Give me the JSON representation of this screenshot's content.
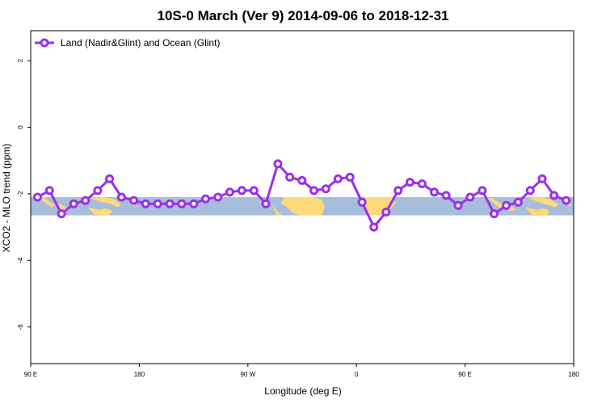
{
  "chart_data": {
    "type": "line",
    "title": "10S-0 March (Ver 9)   2014-09-06 to 2018-12-31",
    "xlabel": "Longitude (deg E)",
    "ylabel": "XCO2 - MLO trend (ppm)",
    "xlim": [
      90,
      450
    ],
    "ylim": [
      -7.1,
      2.9
    ],
    "x_ticks": [
      {
        "value": 90,
        "label": "90 E"
      },
      {
        "value": 162,
        "label": "180"
      },
      {
        "value": 234,
        "label": "90 W"
      },
      {
        "value": 306,
        "label": "0"
      },
      {
        "value": 378,
        "label": "90 E"
      },
      {
        "value": 450,
        "label": "180"
      }
    ],
    "y_ticks": [
      {
        "value": 2,
        "label": "2"
      },
      {
        "value": 0,
        "label": "0"
      },
      {
        "value": -2,
        "label": "-2"
      },
      {
        "value": -4,
        "label": "-4"
      },
      {
        "value": -6,
        "label": "-6"
      }
    ],
    "grid": false,
    "legend_position": "top-left",
    "map_band": {
      "y_range": [
        -2.65,
        -2.1
      ],
      "ocean_color": "#a6bddb",
      "land_color": "#fdd97a"
    },
    "series": [
      {
        "name": "Land (Nadir&Glint) and Ocean (Glint)",
        "color": "#9b30e8",
        "x": [
          94.5,
          102.5,
          110.4,
          118.5,
          126.3,
          134.4,
          142.3,
          150.2,
          158.3,
          166.2,
          174.2,
          182.2,
          190.1,
          198.1,
          206.0,
          214.1,
          222.0,
          230.0,
          238.0,
          245.9,
          253.9,
          261.8,
          269.9,
          277.8,
          285.7,
          293.8,
          301.7,
          309.7,
          317.5,
          325.6,
          333.6,
          341.5,
          349.5,
          357.6,
          365.4,
          373.4,
          381.3,
          389.4,
          397.3,
          405.3,
          413.2,
          421.2,
          429.1,
          437.0,
          445.0
        ],
        "y": [
          -2.1,
          -1.9,
          -2.6,
          -2.3,
          -2.2,
          -1.9,
          -1.55,
          -2.1,
          -2.2,
          -2.3,
          -2.3,
          -2.3,
          -2.3,
          -2.3,
          -2.15,
          -2.1,
          -1.95,
          -1.9,
          -1.9,
          -2.3,
          -1.1,
          -1.5,
          -1.6,
          -1.9,
          -1.85,
          -1.55,
          -1.5,
          -2.25,
          -3.0,
          -2.55,
          -1.9,
          -1.65,
          -1.7,
          -1.95,
          -2.05,
          -2.35,
          -2.1,
          -1.9,
          -2.6,
          -2.35,
          -2.25,
          -1.9,
          -1.55,
          -2.05,
          -2.2
        ]
      }
    ]
  }
}
